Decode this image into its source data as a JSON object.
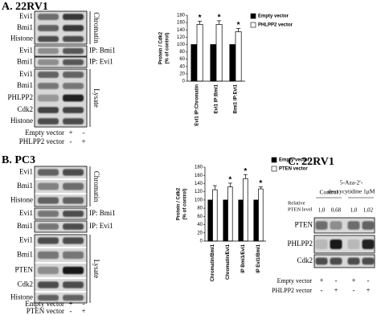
{
  "panel_a": {
    "label": "A. 22RV1",
    "sections": [
      {
        "name": "Chromatin",
        "rows": [
          "Evi1",
          "Bmi1",
          "Histone"
        ]
      },
      {
        "name": "IP: Bmi1",
        "rows": [
          "Evi1"
        ]
      },
      {
        "name": "IP: Evi1",
        "rows": [
          "Bmi1"
        ]
      },
      {
        "name": "Lysate",
        "rows": [
          "Evi1",
          "Bmi1",
          "PHLPP2",
          "Cdk2",
          "Histone"
        ]
      }
    ],
    "conditions": [
      {
        "name": "Empty vector",
        "signs": [
          "+",
          "-"
        ]
      },
      {
        "name": "PHLPP2 vector",
        "signs": [
          "-",
          "+"
        ]
      }
    ],
    "chart": {
      "type": "bar",
      "ylabel": [
        "Protein / Cdk2",
        "(% of control)"
      ],
      "categories": [
        "Evi1 IP:Chromatin",
        "Evi1 IP:Bmi1",
        "Bmi1 IP:Evi1"
      ],
      "series": [
        {
          "name": "Empty vector",
          "color": "#000000",
          "values": [
            100,
            100,
            100
          ]
        },
        {
          "name": "PHLPP2 vector",
          "color": "#ffffff",
          "values": [
            155,
            155,
            135
          ],
          "errors": [
            9,
            10,
            9
          ],
          "significance": [
            "*",
            "*",
            "*"
          ]
        }
      ],
      "ylim": [
        0,
        180
      ],
      "yticks": [
        0,
        20,
        40,
        60,
        80,
        100,
        120,
        140,
        160,
        180
      ]
    }
  },
  "panel_b": {
    "label": "B. PC3",
    "sections": [
      {
        "name": "Chromatin",
        "rows": [
          "Evi1",
          "Bmi1",
          "Histone"
        ]
      },
      {
        "name": "IP: Bmi1",
        "rows": [
          "Evi1"
        ]
      },
      {
        "name": "IP: Evi1",
        "rows": [
          "Bmi1"
        ]
      },
      {
        "name": "Lysate",
        "rows": [
          "Evi1",
          "Bmi1",
          "PTEN",
          "Cdk2",
          "Histone"
        ]
      }
    ],
    "conditions": [
      {
        "name": "Empty vector",
        "signs": [
          "+",
          "-"
        ]
      },
      {
        "name": "PTEN vector",
        "signs": [
          "-",
          "+"
        ]
      }
    ],
    "chart": {
      "type": "bar",
      "ylabel": [
        "Protein / Cdk2",
        "(% of control)"
      ],
      "categories": [
        "Chromatin/Bmi1",
        "Chromatin/Evi1",
        "IP Bmi1/Evi1",
        "IP Evi1/Bmi1"
      ],
      "series": [
        {
          "name": "Empty vector",
          "color": "#000000",
          "values": [
            100,
            100,
            100,
            100
          ]
        },
        {
          "name": "PTEN vector",
          "color": "#ffffff",
          "values": [
            125,
            132,
            152,
            127
          ],
          "errors": [
            10,
            9,
            10,
            5
          ],
          "significance": [
            null,
            "*",
            "*",
            "*"
          ]
        }
      ],
      "ylim": [
        0,
        180
      ],
      "yticks": [
        0,
        20,
        40,
        60,
        80,
        100,
        120,
        140,
        160,
        180
      ]
    }
  },
  "panel_c": {
    "label": "C. 22RV1",
    "treatments": [
      [
        "Control"
      ],
      [
        "5-Aza-2'-",
        "deoxycytidine 1μM"
      ]
    ],
    "relative_label": [
      "Relative",
      "PTEN level"
    ],
    "relative_values": [
      "1,0",
      "0,68",
      "1,0",
      "1,02"
    ],
    "rows": [
      "PTEN",
      "PHLPP2",
      "Cdk2"
    ],
    "conditions": [
      {
        "name": "Empty vector",
        "signs": [
          "+",
          "-",
          "+",
          "-"
        ]
      },
      {
        "name": "PHLPP2 vector",
        "signs": [
          "-",
          "+",
          "-",
          "+"
        ]
      }
    ]
  }
}
